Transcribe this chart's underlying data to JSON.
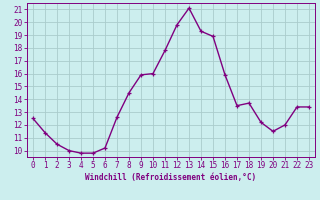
{
  "x": [
    0,
    1,
    2,
    3,
    4,
    5,
    6,
    7,
    8,
    9,
    10,
    11,
    12,
    13,
    14,
    15,
    16,
    17,
    18,
    19,
    20,
    21,
    22,
    23
  ],
  "y": [
    12.5,
    11.4,
    10.5,
    10.0,
    9.8,
    9.8,
    10.2,
    12.6,
    14.5,
    15.9,
    16.0,
    17.8,
    19.8,
    21.1,
    19.3,
    18.9,
    15.9,
    13.5,
    13.7,
    12.2,
    11.5,
    12.0,
    13.4,
    13.4
  ],
  "line_color": "#800080",
  "marker": "+",
  "marker_color": "#800080",
  "bg_color": "#cceeee",
  "grid_color": "#aacccc",
  "xlabel": "Windchill (Refroidissement éolien,°C)",
  "xlim": [
    -0.5,
    23.5
  ],
  "ylim": [
    9.5,
    21.5
  ],
  "xtick_labels": [
    "0",
    "1",
    "2",
    "3",
    "4",
    "5",
    "6",
    "7",
    "8",
    "9",
    "10",
    "11",
    "12",
    "13",
    "14",
    "15",
    "16",
    "17",
    "18",
    "19",
    "20",
    "21",
    "22",
    "23"
  ],
  "ytick_labels": [
    "10",
    "11",
    "12",
    "13",
    "14",
    "15",
    "16",
    "17",
    "18",
    "19",
    "20",
    "21"
  ],
  "text_color": "#800080",
  "xlabel_fontsize": 5.5,
  "tick_fontsize": 5.5,
  "linewidth": 1.0
}
